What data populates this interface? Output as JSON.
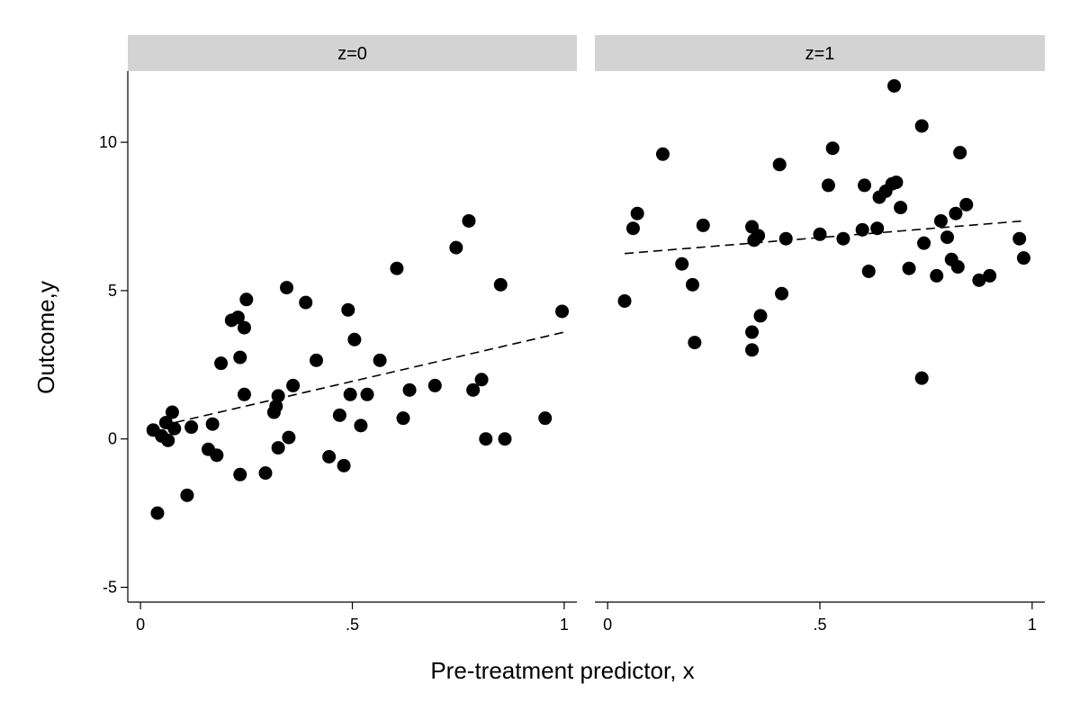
{
  "chart_data": {
    "type": "scatter",
    "xlabel": "Pre-treatment predictor, x",
    "ylabel": "Outcome,y",
    "xlim": [
      -0.03,
      1.03
    ],
    "ylim": [
      -5.5,
      12.4
    ],
    "x_ticks": [
      0,
      0.5,
      1
    ],
    "x_tick_labels": [
      "0",
      ".5",
      "1"
    ],
    "y_ticks": [
      -5,
      0,
      5,
      10
    ],
    "y_tick_labels": [
      "-5",
      "0",
      "5",
      "10"
    ],
    "grid": false,
    "colors": {
      "point": "#000000",
      "strip": "#d3d3d3",
      "fit_line": "#000000"
    },
    "panels": [
      {
        "label": "z=0",
        "fit": {
          "x": [
            0.05,
            1.0
          ],
          "y": [
            0.45,
            3.6
          ],
          "style": "dashed"
        },
        "points": [
          [
            0.03,
            0.3
          ],
          [
            0.04,
            -2.5
          ],
          [
            0.05,
            0.1
          ],
          [
            0.06,
            0.55
          ],
          [
            0.065,
            -0.05
          ],
          [
            0.075,
            0.9
          ],
          [
            0.08,
            0.35
          ],
          [
            0.11,
            -1.9
          ],
          [
            0.12,
            0.4
          ],
          [
            0.16,
            -0.35
          ],
          [
            0.17,
            0.5
          ],
          [
            0.18,
            -0.55
          ],
          [
            0.19,
            2.55
          ],
          [
            0.215,
            4.0
          ],
          [
            0.23,
            4.1
          ],
          [
            0.235,
            2.75
          ],
          [
            0.235,
            -1.2
          ],
          [
            0.245,
            1.5
          ],
          [
            0.245,
            3.75
          ],
          [
            0.25,
            4.7
          ],
          [
            0.295,
            -1.15
          ],
          [
            0.315,
            0.9
          ],
          [
            0.32,
            1.1
          ],
          [
            0.325,
            -0.3
          ],
          [
            0.325,
            1.45
          ],
          [
            0.345,
            5.1
          ],
          [
            0.35,
            0.05
          ],
          [
            0.36,
            1.8
          ],
          [
            0.39,
            4.6
          ],
          [
            0.415,
            2.65
          ],
          [
            0.445,
            -0.6
          ],
          [
            0.47,
            0.8
          ],
          [
            0.48,
            -0.9
          ],
          [
            0.49,
            4.35
          ],
          [
            0.495,
            1.5
          ],
          [
            0.505,
            3.35
          ],
          [
            0.52,
            0.45
          ],
          [
            0.535,
            1.5
          ],
          [
            0.565,
            2.65
          ],
          [
            0.605,
            5.75
          ],
          [
            0.62,
            0.7
          ],
          [
            0.635,
            1.65
          ],
          [
            0.695,
            1.8
          ],
          [
            0.745,
            6.45
          ],
          [
            0.775,
            7.35
          ],
          [
            0.785,
            1.65
          ],
          [
            0.805,
            2.0
          ],
          [
            0.815,
            0.0
          ],
          [
            0.85,
            5.2
          ],
          [
            0.86,
            0.0
          ],
          [
            0.955,
            0.7
          ],
          [
            0.995,
            4.3
          ]
        ]
      },
      {
        "label": "z=1",
        "fit": {
          "x": [
            0.04,
            0.98
          ],
          "y": [
            6.25,
            7.35
          ],
          "style": "dashed"
        },
        "points": [
          [
            0.04,
            4.65
          ],
          [
            0.06,
            7.1
          ],
          [
            0.07,
            7.6
          ],
          [
            0.13,
            9.6
          ],
          [
            0.175,
            5.9
          ],
          [
            0.2,
            5.2
          ],
          [
            0.205,
            3.25
          ],
          [
            0.225,
            7.2
          ],
          [
            0.34,
            3.6
          ],
          [
            0.34,
            3.0
          ],
          [
            0.34,
            7.15
          ],
          [
            0.345,
            6.7
          ],
          [
            0.355,
            6.85
          ],
          [
            0.36,
            4.15
          ],
          [
            0.405,
            9.25
          ],
          [
            0.41,
            4.9
          ],
          [
            0.42,
            6.75
          ],
          [
            0.5,
            6.9
          ],
          [
            0.52,
            8.55
          ],
          [
            0.53,
            9.8
          ],
          [
            0.555,
            6.75
          ],
          [
            0.6,
            7.05
          ],
          [
            0.605,
            8.55
          ],
          [
            0.615,
            5.65
          ],
          [
            0.635,
            7.1
          ],
          [
            0.64,
            8.15
          ],
          [
            0.655,
            8.35
          ],
          [
            0.67,
            8.6
          ],
          [
            0.675,
            11.9
          ],
          [
            0.68,
            8.65
          ],
          [
            0.69,
            7.8
          ],
          [
            0.71,
            5.75
          ],
          [
            0.74,
            10.55
          ],
          [
            0.74,
            2.05
          ],
          [
            0.745,
            6.6
          ],
          [
            0.775,
            5.5
          ],
          [
            0.785,
            7.35
          ],
          [
            0.8,
            6.8
          ],
          [
            0.81,
            6.05
          ],
          [
            0.82,
            7.6
          ],
          [
            0.825,
            5.8
          ],
          [
            0.83,
            9.65
          ],
          [
            0.845,
            7.9
          ],
          [
            0.875,
            5.35
          ],
          [
            0.9,
            5.5
          ],
          [
            0.97,
            6.75
          ],
          [
            0.98,
            6.1
          ]
        ]
      }
    ]
  }
}
